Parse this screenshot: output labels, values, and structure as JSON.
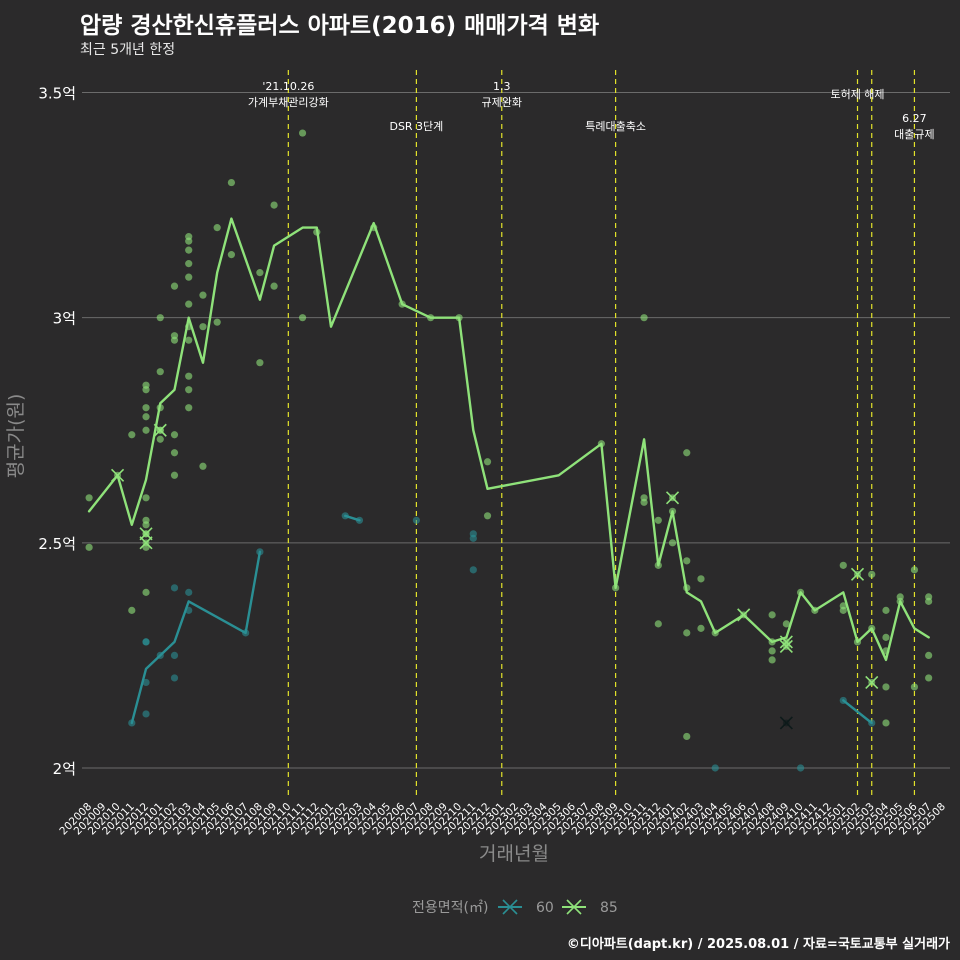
{
  "title": "압량 경산한신휴플러스 아파트(2016) 매매가격 변화",
  "subtitle": "최근 5개년 한정",
  "caption": "©디아파트(dapt.kr) / 2025.08.01 / 자료=국토교통부 실거래가",
  "chart_data": {
    "type": "line",
    "xlabel": "거래년월",
    "ylabel": "평균가(원)",
    "ylim": [
      1.94,
      3.55
    ],
    "yticks": [
      {
        "v": 2.0,
        "label": "2억"
      },
      {
        "v": 2.5,
        "label": "2.5억"
      },
      {
        "v": 3.0,
        "label": "3억"
      },
      {
        "v": 3.5,
        "label": "3.5억"
      }
    ],
    "grid": true,
    "legend_title": "전용면적(㎡)",
    "legend_position": "bottom",
    "categories": [
      "202008",
      "202009",
      "202010",
      "202011",
      "202012",
      "202101",
      "202102",
      "202103",
      "202104",
      "202105",
      "202106",
      "202107",
      "202108",
      "202109",
      "202110",
      "202111",
      "202112",
      "202201",
      "202202",
      "202203",
      "202204",
      "202205",
      "202206",
      "202207",
      "202208",
      "202209",
      "202210",
      "202211",
      "202212",
      "202301",
      "202302",
      "202303",
      "202304",
      "202305",
      "202306",
      "202307",
      "202308",
      "202309",
      "202310",
      "202311",
      "202312",
      "202401",
      "202402",
      "202403",
      "202404",
      "202405",
      "202406",
      "202407",
      "202408",
      "202409",
      "202410",
      "202411",
      "202412",
      "202501",
      "202502",
      "202503",
      "202504",
      "202505",
      "202506",
      "202507",
      "202508"
    ],
    "events": [
      {
        "at": "202110",
        "lines": [
          "'21.10.26",
          "가계부채관리강화"
        ],
        "level": 0
      },
      {
        "at": "202207",
        "lines": [
          "DSR 3단계"
        ],
        "level": 2
      },
      {
        "at": "202301",
        "lines": [
          "1.3",
          "규제완화"
        ],
        "level": 0
      },
      {
        "at": "202309",
        "lines": [
          "특례대출축소"
        ],
        "level": 2
      },
      {
        "at": "202502",
        "lines": [
          "토허제 해제"
        ],
        "level": 1
      },
      {
        "at": "202503",
        "lines": [],
        "level": 1
      },
      {
        "at": "202506",
        "lines": [
          "6.27",
          "대출규제"
        ],
        "level": 3
      }
    ],
    "series": [
      {
        "name": "60",
        "color": "#2a8f94",
        "segments": [
          [
            [
              "202011",
              2.1
            ],
            [
              "202012",
              2.22
            ],
            [
              "202101",
              2.25
            ],
            [
              "202102",
              2.28
            ],
            [
              "202103",
              2.37
            ],
            [
              "202107",
              2.3
            ],
            [
              "202108",
              2.48
            ]
          ],
          [
            [
              "202202",
              2.56
            ],
            [
              "202203",
              2.55
            ]
          ],
          [
            [
              "202501",
              2.15
            ],
            [
              "202503",
              2.1
            ]
          ]
        ],
        "points": [
          [
            "202011",
            2.1
          ],
          [
            "202012",
            2.28
          ],
          [
            "202012",
            2.28
          ],
          [
            "202012",
            2.19
          ],
          [
            "202012",
            2.12
          ],
          [
            "202101",
            2.25
          ],
          [
            "202102",
            2.4
          ],
          [
            "202102",
            2.25
          ],
          [
            "202102",
            2.2
          ],
          [
            "202103",
            2.39
          ],
          [
            "202103",
            2.35
          ],
          [
            "202107",
            2.3
          ],
          [
            "202108",
            2.48
          ],
          [
            "202202",
            2.56
          ],
          [
            "202203",
            2.55
          ],
          [
            "202207",
            2.55
          ],
          [
            "202211",
            2.52
          ],
          [
            "202211",
            2.51
          ],
          [
            "202211",
            2.44
          ],
          [
            "202404",
            2.0
          ],
          [
            "202410",
            2.0
          ],
          [
            "202501",
            2.15
          ],
          [
            "202503",
            2.1
          ]
        ],
        "x_marks": [
          [
            "202409",
            2.1
          ]
        ]
      },
      {
        "name": "85",
        "color": "#8fe27a",
        "segments": [
          [
            [
              "202008",
              2.57
            ],
            [
              "202010",
              2.65
            ],
            [
              "202011",
              2.54
            ],
            [
              "202012",
              2.64
            ],
            [
              "202101",
              2.81
            ],
            [
              "202102",
              2.84
            ],
            [
              "202103",
              3.0
            ],
            [
              "202104",
              2.9
            ],
            [
              "202105",
              3.1
            ],
            [
              "202106",
              3.22
            ],
            [
              "202107",
              3.13
            ],
            [
              "202108",
              3.04
            ],
            [
              "202109",
              3.16
            ],
            [
              "202111",
              3.2
            ],
            [
              "202112",
              3.2
            ],
            [
              "202201",
              2.98
            ],
            [
              "202204",
              3.21
            ],
            [
              "202206",
              3.03
            ],
            [
              "202208",
              3.0
            ],
            [
              "202210",
              3.0
            ],
            [
              "202211",
              2.75
            ],
            [
              "202212",
              2.62
            ],
            [
              "202305",
              2.65
            ],
            [
              "202308",
              2.72
            ],
            [
              "202309",
              2.4
            ],
            [
              "202311",
              2.73
            ],
            [
              "202312",
              2.45
            ],
            [
              "202401",
              2.57
            ],
            [
              "202402",
              2.39
            ],
            [
              "202403",
              2.37
            ],
            [
              "202404",
              2.3
            ],
            [
              "202406",
              2.34
            ],
            [
              "202408",
              2.28
            ],
            [
              "202409",
              2.29
            ],
            [
              "202410",
              2.39
            ],
            [
              "202411",
              2.35
            ],
            [
              "202501",
              2.39
            ],
            [
              "202502",
              2.28
            ],
            [
              "202503",
              2.31
            ],
            [
              "202504",
              2.24
            ],
            [
              "202505",
              2.37
            ],
            [
              "202506",
              2.31
            ],
            [
              "202507",
              2.29
            ]
          ]
        ],
        "points": [
          [
            "202008",
            2.6
          ],
          [
            "202008",
            2.49
          ],
          [
            "202011",
            2.74
          ],
          [
            "202011",
            2.35
          ],
          [
            "202012",
            2.85
          ],
          [
            "202012",
            2.84
          ],
          [
            "202012",
            2.8
          ],
          [
            "202012",
            2.78
          ],
          [
            "202012",
            2.75
          ],
          [
            "202012",
            2.6
          ],
          [
            "202012",
            2.55
          ],
          [
            "202012",
            2.54
          ],
          [
            "202012",
            2.52
          ],
          [
            "202012",
            2.49
          ],
          [
            "202012",
            2.39
          ],
          [
            "202101",
            3.0
          ],
          [
            "202101",
            2.88
          ],
          [
            "202101",
            2.8
          ],
          [
            "202101",
            2.75
          ],
          [
            "202101",
            2.73
          ],
          [
            "202102",
            3.07
          ],
          [
            "202102",
            2.96
          ],
          [
            "202102",
            2.95
          ],
          [
            "202102",
            2.74
          ],
          [
            "202102",
            2.7
          ],
          [
            "202102",
            2.65
          ],
          [
            "202103",
            3.18
          ],
          [
            "202103",
            3.17
          ],
          [
            "202103",
            3.15
          ],
          [
            "202103",
            3.12
          ],
          [
            "202103",
            3.09
          ],
          [
            "202103",
            3.03
          ],
          [
            "202103",
            2.98
          ],
          [
            "202103",
            2.95
          ],
          [
            "202103",
            2.87
          ],
          [
            "202103",
            2.84
          ],
          [
            "202103",
            2.8
          ],
          [
            "202104",
            3.05
          ],
          [
            "202104",
            2.98
          ],
          [
            "202104",
            2.67
          ],
          [
            "202105",
            3.2
          ],
          [
            "202105",
            2.99
          ],
          [
            "202106",
            3.3
          ],
          [
            "202106",
            3.14
          ],
          [
            "202108",
            3.1
          ],
          [
            "202108",
            2.9
          ],
          [
            "202109",
            3.25
          ],
          [
            "202109",
            3.07
          ],
          [
            "202111",
            3.41
          ],
          [
            "202111",
            3.0
          ],
          [
            "202112",
            3.19
          ],
          [
            "202204",
            3.2
          ],
          [
            "202206",
            3.03
          ],
          [
            "202208",
            3.0
          ],
          [
            "202210",
            3.0
          ],
          [
            "202212",
            2.68
          ],
          [
            "202212",
            2.56
          ],
          [
            "202308",
            2.72
          ],
          [
            "202309",
            2.4
          ],
          [
            "202311",
            3.0
          ],
          [
            "202311",
            2.6
          ],
          [
            "202311",
            2.59
          ],
          [
            "202312",
            2.55
          ],
          [
            "202312",
            2.45
          ],
          [
            "202312",
            2.32
          ],
          [
            "202401",
            2.5
          ],
          [
            "202401",
            2.57
          ],
          [
            "202402",
            2.7
          ],
          [
            "202402",
            2.46
          ],
          [
            "202402",
            2.4
          ],
          [
            "202402",
            2.3
          ],
          [
            "202402",
            2.07
          ],
          [
            "202403",
            2.42
          ],
          [
            "202403",
            2.31
          ],
          [
            "202404",
            2.3
          ],
          [
            "202408",
            2.34
          ],
          [
            "202408",
            2.28
          ],
          [
            "202408",
            2.26
          ],
          [
            "202408",
            2.24
          ],
          [
            "202409",
            2.32
          ],
          [
            "202410",
            2.39
          ],
          [
            "202411",
            2.35
          ],
          [
            "202501",
            2.45
          ],
          [
            "202501",
            2.36
          ],
          [
            "202501",
            2.35
          ],
          [
            "202502",
            2.28
          ],
          [
            "202503",
            2.43
          ],
          [
            "202503",
            2.31
          ],
          [
            "202504",
            2.35
          ],
          [
            "202504",
            2.29
          ],
          [
            "202504",
            2.26
          ],
          [
            "202504",
            2.18
          ],
          [
            "202504",
            2.1
          ],
          [
            "202505",
            2.38
          ],
          [
            "202505",
            2.37
          ],
          [
            "202506",
            2.44
          ],
          [
            "202506",
            2.18
          ],
          [
            "202507",
            2.38
          ],
          [
            "202507",
            2.37
          ],
          [
            "202507",
            2.25
          ],
          [
            "202507",
            2.2
          ]
        ],
        "x_marks": [
          [
            "202010",
            2.65
          ],
          [
            "202012",
            2.52
          ],
          [
            "202012",
            2.5
          ],
          [
            "202101",
            2.75
          ],
          [
            "202401",
            2.6
          ],
          [
            "202406",
            2.34
          ],
          [
            "202409",
            2.28
          ],
          [
            "202409",
            2.27
          ],
          [
            "202502",
            2.43
          ],
          [
            "202503",
            2.19
          ]
        ]
      }
    ]
  }
}
